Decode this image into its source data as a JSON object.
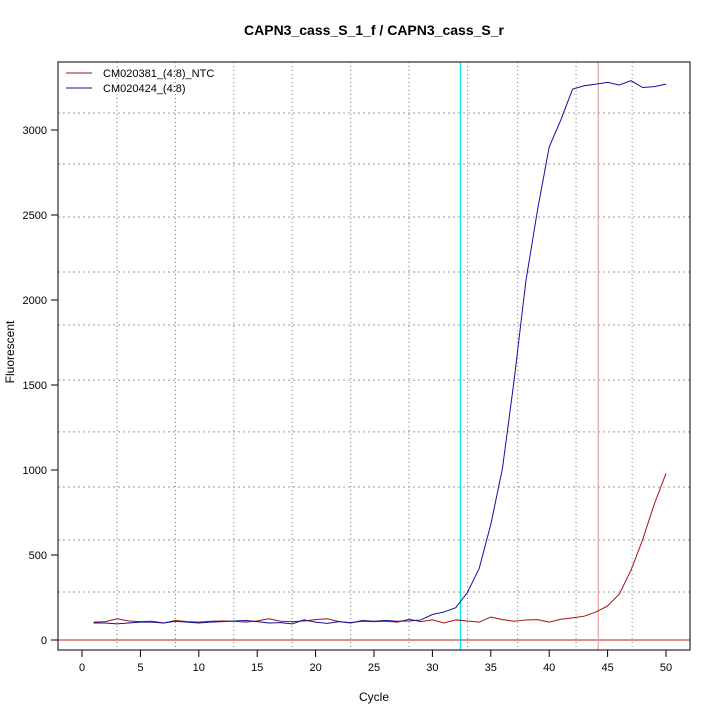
{
  "chart_data": {
    "type": "line",
    "title": "CAPN3_cass_S_1_f / CAPN3_cass_S_r",
    "xlabel": "Cycle",
    "ylabel": "Fluorescent",
    "xlim": [
      -2,
      52
    ],
    "ylim": [
      -50,
      3450
    ],
    "xticks": [
      0,
      5,
      10,
      15,
      20,
      25,
      30,
      35,
      40,
      45,
      50
    ],
    "yticks": [
      0,
      500,
      1000,
      1500,
      2000,
      2500,
      3000
    ],
    "vgrid": [
      3,
      8,
      13,
      18,
      23,
      28,
      33,
      37.3,
      42.3,
      47.1
    ],
    "hgrid": [
      282,
      588,
      900,
      1224,
      1529,
      1853,
      2165,
      2488,
      2800,
      3100
    ],
    "threshold_lines": [
      {
        "x": 32.4,
        "color": "#00e5ee"
      },
      {
        "x": 44.2,
        "color": "#e8a0a0"
      }
    ],
    "baseline": {
      "y": 0,
      "color": "#b22222"
    },
    "legend_position": "top-left",
    "x": [
      1,
      2,
      3,
      4,
      5,
      6,
      7,
      8,
      9,
      10,
      11,
      12,
      13,
      14,
      15,
      16,
      17,
      18,
      19,
      20,
      21,
      22,
      23,
      24,
      25,
      26,
      27,
      28,
      29,
      30,
      31,
      32,
      33,
      34,
      35,
      36,
      37,
      38,
      39,
      40,
      41,
      42,
      43,
      44,
      45,
      46,
      47,
      48,
      49,
      50
    ],
    "series": [
      {
        "name": "CM020381_(4:8)_NTC",
        "color": "#a01010",
        "values": [
          105,
          108,
          125,
          112,
          108,
          110,
          100,
          115,
          108,
          105,
          110,
          112,
          110,
          105,
          112,
          125,
          110,
          108,
          112,
          120,
          125,
          108,
          102,
          110,
          108,
          110,
          105,
          122,
          108,
          118,
          100,
          118,
          112,
          105,
          135,
          120,
          110,
          118,
          120,
          105,
          122,
          130,
          140,
          165,
          200,
          270,
          410,
          590,
          800,
          980
        ]
      },
      {
        "name": "CM020424_(4:8)",
        "color": "#1010a0",
        "values": [
          100,
          100,
          95,
          100,
          105,
          105,
          100,
          110,
          105,
          100,
          105,
          108,
          112,
          115,
          108,
          100,
          102,
          95,
          118,
          105,
          98,
          108,
          100,
          115,
          110,
          115,
          110,
          112,
          118,
          150,
          165,
          190,
          280,
          420,
          680,
          1010,
          1530,
          2110,
          2530,
          2900,
          3060,
          3240,
          3260,
          3270,
          3280,
          3265,
          3290,
          3250,
          3255,
          3270
        ]
      }
    ]
  }
}
